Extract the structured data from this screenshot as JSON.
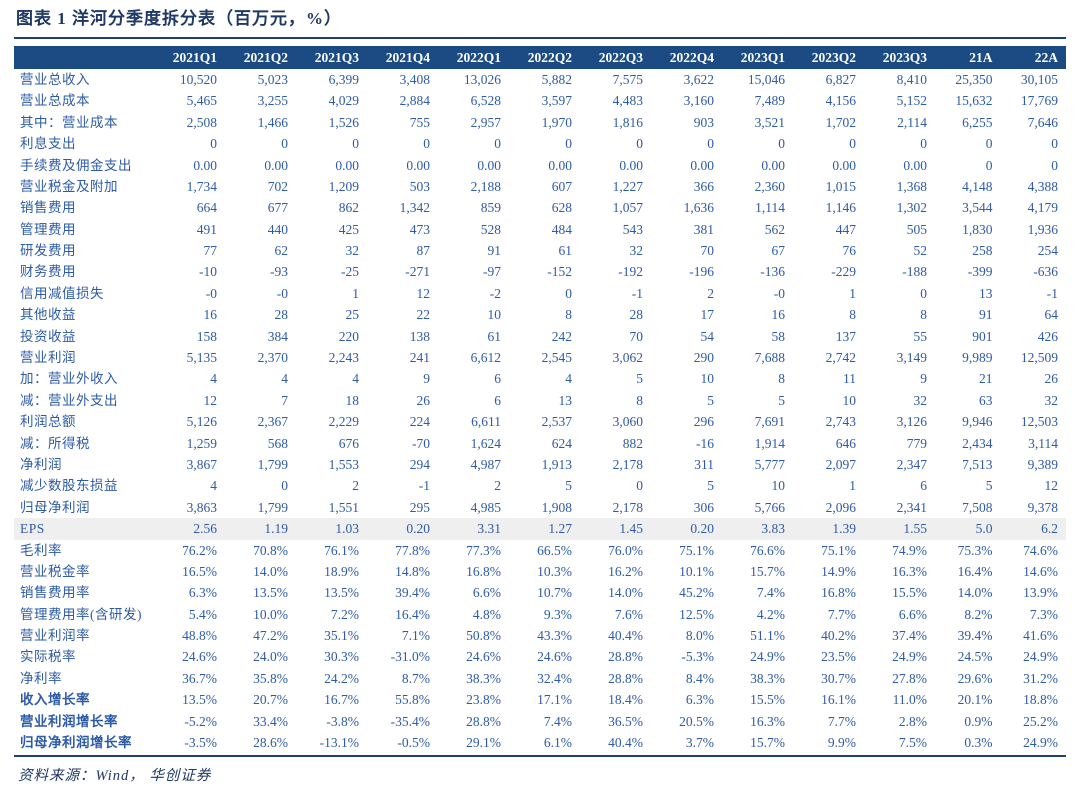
{
  "title": "图表 1  洋河分季度拆分表（百万元，%）",
  "source": "资料来源：Wind， 华创证券",
  "colors": {
    "header_bg": "#1b4b82",
    "header_text": "#ffffff",
    "body_text": "#2e5ba6",
    "title_text": "#1f3864",
    "rule": "#1e4174",
    "highlight_row_bg": "#efefef"
  },
  "table": {
    "label_header": "",
    "columns": [
      "2021Q1",
      "2021Q2",
      "2021Q3",
      "2021Q4",
      "2022Q1",
      "2022Q2",
      "2022Q3",
      "2022Q4",
      "2023Q1",
      "2023Q2",
      "2023Q3",
      "21A",
      "22A"
    ],
    "rows": [
      {
        "label": "营业总收入",
        "style": "normal",
        "values": [
          "10,520",
          "5,023",
          "6,399",
          "3,408",
          "13,026",
          "5,882",
          "7,575",
          "3,622",
          "15,046",
          "6,827",
          "8,410",
          "25,350",
          "30,105"
        ]
      },
      {
        "label": "营业总成本",
        "style": "normal",
        "values": [
          "5,465",
          "3,255",
          "4,029",
          "2,884",
          "6,528",
          "3,597",
          "4,483",
          "3,160",
          "7,489",
          "4,156",
          "5,152",
          "15,632",
          "17,769"
        ]
      },
      {
        "label": "其中：营业成本",
        "style": "normal",
        "values": [
          "2,508",
          "1,466",
          "1,526",
          "755",
          "2,957",
          "1,970",
          "1,816",
          "903",
          "3,521",
          "1,702",
          "2,114",
          "6,255",
          "7,646"
        ]
      },
      {
        "label": "利息支出",
        "style": "normal",
        "values": [
          "0",
          "0",
          "0",
          "0",
          "0",
          "0",
          "0",
          "0",
          "0",
          "0",
          "0",
          "0",
          "0"
        ]
      },
      {
        "label": "手续费及佣金支出",
        "style": "normal",
        "values": [
          "0.00",
          "0.00",
          "0.00",
          "0.00",
          "0.00",
          "0.00",
          "0.00",
          "0.00",
          "0.00",
          "0.00",
          "0.00",
          "0",
          "0"
        ]
      },
      {
        "label": "营业税金及附加",
        "style": "normal",
        "values": [
          "1,734",
          "702",
          "1,209",
          "503",
          "2,188",
          "607",
          "1,227",
          "366",
          "2,360",
          "1,015",
          "1,368",
          "4,148",
          "4,388"
        ]
      },
      {
        "label": "销售费用",
        "style": "normal",
        "values": [
          "664",
          "677",
          "862",
          "1,342",
          "859",
          "628",
          "1,057",
          "1,636",
          "1,114",
          "1,146",
          "1,302",
          "3,544",
          "4,179"
        ]
      },
      {
        "label": "管理费用",
        "style": "normal",
        "values": [
          "491",
          "440",
          "425",
          "473",
          "528",
          "484",
          "543",
          "381",
          "562",
          "447",
          "505",
          "1,830",
          "1,936"
        ]
      },
      {
        "label": "研发费用",
        "style": "normal",
        "values": [
          "77",
          "62",
          "32",
          "87",
          "91",
          "61",
          "32",
          "70",
          "67",
          "76",
          "52",
          "258",
          "254"
        ]
      },
      {
        "label": "财务费用",
        "style": "normal",
        "values": [
          "-10",
          "-93",
          "-25",
          "-271",
          "-97",
          "-152",
          "-192",
          "-196",
          "-136",
          "-229",
          "-188",
          "-399",
          "-636"
        ]
      },
      {
        "label": "信用减值损失",
        "style": "normal",
        "values": [
          "-0",
          "-0",
          "1",
          "12",
          "-2",
          "0",
          "-1",
          "2",
          "-0",
          "1",
          "0",
          "13",
          "-1"
        ]
      },
      {
        "label": "其他收益",
        "style": "normal",
        "values": [
          "16",
          "28",
          "25",
          "22",
          "10",
          "8",
          "28",
          "17",
          "16",
          "8",
          "8",
          "91",
          "64"
        ]
      },
      {
        "label": "投资收益",
        "style": "normal",
        "values": [
          "158",
          "384",
          "220",
          "138",
          "61",
          "242",
          "70",
          "54",
          "58",
          "137",
          "55",
          "901",
          "426"
        ]
      },
      {
        "label": "营业利润",
        "style": "normal",
        "values": [
          "5,135",
          "2,370",
          "2,243",
          "241",
          "6,612",
          "2,545",
          "3,062",
          "290",
          "7,688",
          "2,742",
          "3,149",
          "9,989",
          "12,509"
        ]
      },
      {
        "label": "加：营业外收入",
        "style": "normal",
        "values": [
          "4",
          "4",
          "4",
          "9",
          "6",
          "4",
          "5",
          "10",
          "8",
          "11",
          "9",
          "21",
          "26"
        ]
      },
      {
        "label": "减：营业外支出",
        "style": "normal",
        "values": [
          "12",
          "7",
          "18",
          "26",
          "6",
          "13",
          "8",
          "5",
          "5",
          "10",
          "32",
          "63",
          "32"
        ]
      },
      {
        "label": "利润总额",
        "style": "normal",
        "values": [
          "5,126",
          "2,367",
          "2,229",
          "224",
          "6,611",
          "2,537",
          "3,060",
          "296",
          "7,691",
          "2,743",
          "3,126",
          "9,946",
          "12,503"
        ]
      },
      {
        "label": "减：所得税",
        "style": "normal",
        "values": [
          "1,259",
          "568",
          "676",
          "-70",
          "1,624",
          "624",
          "882",
          "-16",
          "1,914",
          "646",
          "779",
          "2,434",
          "3,114"
        ]
      },
      {
        "label": "净利润",
        "style": "normal",
        "values": [
          "3,867",
          "1,799",
          "1,553",
          "294",
          "4,987",
          "1,913",
          "2,178",
          "311",
          "5,777",
          "2,097",
          "2,347",
          "7,513",
          "9,389"
        ]
      },
      {
        "label": "减少数股东损益",
        "style": "normal",
        "values": [
          "4",
          "0",
          "2",
          "-1",
          "2",
          "5",
          "0",
          "5",
          "10",
          "1",
          "6",
          "5",
          "12"
        ]
      },
      {
        "label": "归母净利润",
        "style": "normal",
        "values": [
          "3,863",
          "1,799",
          "1,551",
          "295",
          "4,985",
          "1,908",
          "2,178",
          "306",
          "5,766",
          "2,096",
          "2,341",
          "7,508",
          "9,378"
        ]
      },
      {
        "label": "EPS",
        "style": "highlight",
        "values": [
          "2.56",
          "1.19",
          "1.03",
          "0.20",
          "3.31",
          "1.27",
          "1.45",
          "0.20",
          "3.83",
          "1.39",
          "1.55",
          "5.0",
          "6.2"
        ]
      },
      {
        "label": "毛利率",
        "style": "normal",
        "values": [
          "76.2%",
          "70.8%",
          "76.1%",
          "77.8%",
          "77.3%",
          "66.5%",
          "76.0%",
          "75.1%",
          "76.6%",
          "75.1%",
          "74.9%",
          "75.3%",
          "74.6%"
        ]
      },
      {
        "label": "营业税金率",
        "style": "normal",
        "values": [
          "16.5%",
          "14.0%",
          "18.9%",
          "14.8%",
          "16.8%",
          "10.3%",
          "16.2%",
          "10.1%",
          "15.7%",
          "14.9%",
          "16.3%",
          "16.4%",
          "14.6%"
        ]
      },
      {
        "label": "销售费用率",
        "style": "normal",
        "values": [
          "6.3%",
          "13.5%",
          "13.5%",
          "39.4%",
          "6.6%",
          "10.7%",
          "14.0%",
          "45.2%",
          "7.4%",
          "16.8%",
          "15.5%",
          "14.0%",
          "13.9%"
        ]
      },
      {
        "label": "管理费用率(含研发)",
        "style": "normal",
        "values": [
          "5.4%",
          "10.0%",
          "7.2%",
          "16.4%",
          "4.8%",
          "9.3%",
          "7.6%",
          "12.5%",
          "4.2%",
          "7.7%",
          "6.6%",
          "8.2%",
          "7.3%"
        ]
      },
      {
        "label": "营业利润率",
        "style": "normal",
        "values": [
          "48.8%",
          "47.2%",
          "35.1%",
          "7.1%",
          "50.8%",
          "43.3%",
          "40.4%",
          "8.0%",
          "51.1%",
          "40.2%",
          "37.4%",
          "39.4%",
          "41.6%"
        ]
      },
      {
        "label": "实际税率",
        "style": "normal",
        "values": [
          "24.6%",
          "24.0%",
          "30.3%",
          "-31.0%",
          "24.6%",
          "24.6%",
          "28.8%",
          "-5.3%",
          "24.9%",
          "23.5%",
          "24.9%",
          "24.5%",
          "24.9%"
        ]
      },
      {
        "label": "净利率",
        "style": "normal",
        "values": [
          "36.7%",
          "35.8%",
          "24.2%",
          "8.7%",
          "38.3%",
          "32.4%",
          "28.8%",
          "8.4%",
          "38.3%",
          "30.7%",
          "27.8%",
          "29.6%",
          "31.2%"
        ]
      },
      {
        "label": "收入增长率",
        "style": "bold",
        "values": [
          "13.5%",
          "20.7%",
          "16.7%",
          "55.8%",
          "23.8%",
          "17.1%",
          "18.4%",
          "6.3%",
          "15.5%",
          "16.1%",
          "11.0%",
          "20.1%",
          "18.8%"
        ]
      },
      {
        "label": "营业利润增长率",
        "style": "bold",
        "values": [
          "-5.2%",
          "33.4%",
          "-3.8%",
          "-35.4%",
          "28.8%",
          "7.4%",
          "36.5%",
          "20.5%",
          "16.3%",
          "7.7%",
          "2.8%",
          "0.9%",
          "25.2%"
        ]
      },
      {
        "label": "归母净利润增长率",
        "style": "bold",
        "values": [
          "-3.5%",
          "28.6%",
          "-13.1%",
          "-0.5%",
          "29.1%",
          "6.1%",
          "40.4%",
          "3.7%",
          "15.7%",
          "9.9%",
          "7.5%",
          "0.3%",
          "24.9%"
        ]
      }
    ]
  }
}
